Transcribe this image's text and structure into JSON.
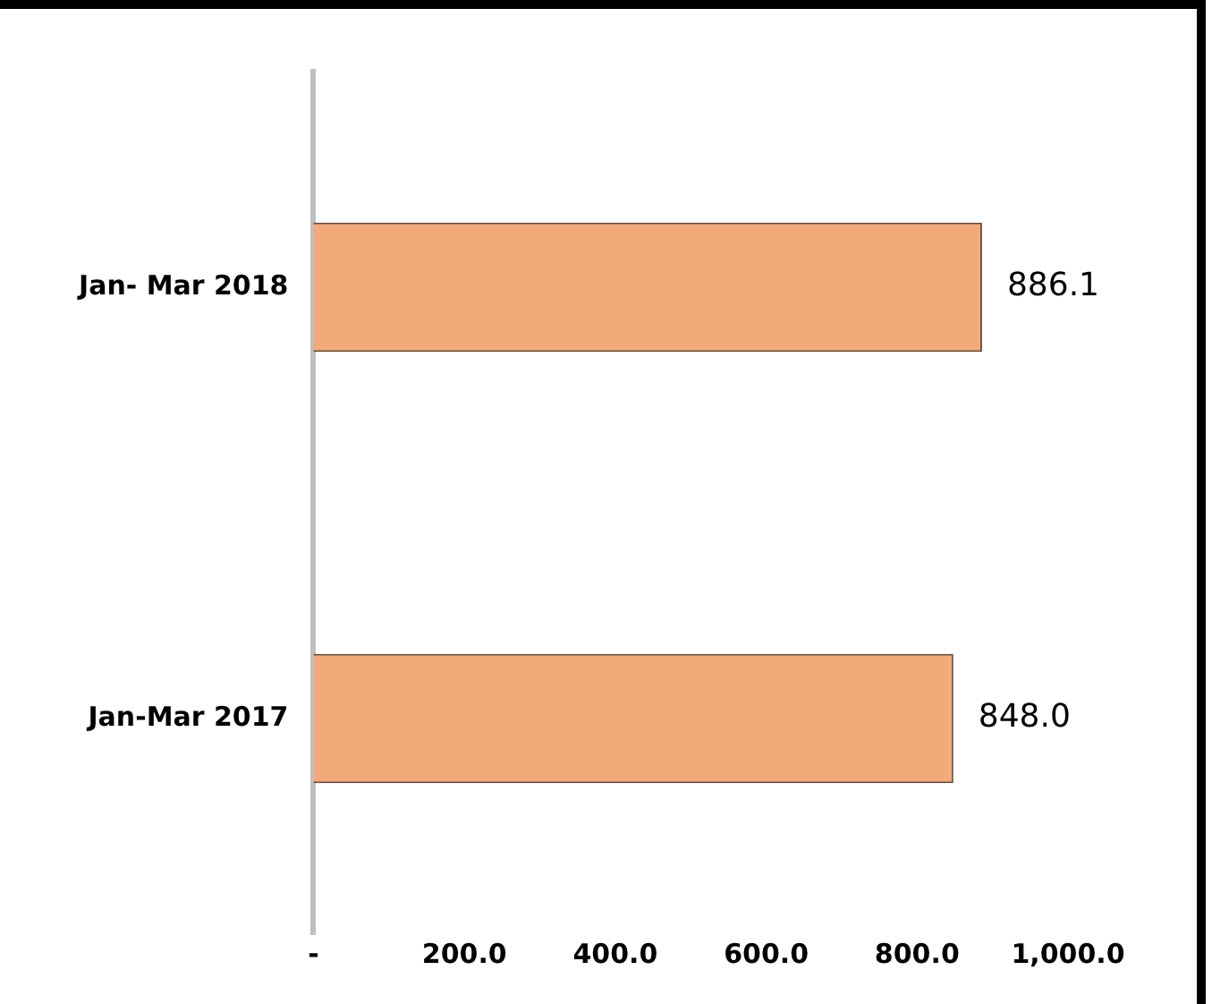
{
  "chart_data": {
    "type": "bar",
    "orientation": "horizontal",
    "categories": [
      "Jan- Mar 2018",
      "Jan-Mar 2017"
    ],
    "values": [
      886.1,
      848.0
    ],
    "color": "#f2aa7a",
    "value_labels": [
      "886.1",
      "848.0"
    ],
    "xlim": [
      0,
      1000
    ],
    "xticks": [
      {
        "value": 0,
        "label": "-"
      },
      {
        "value": 200,
        "label": "200.0"
      },
      {
        "value": 400,
        "label": "400.0"
      },
      {
        "value": 600,
        "label": "600.0"
      },
      {
        "value": 800,
        "label": "800.0"
      },
      {
        "value": 1000,
        "label": "1,000.0"
      }
    ],
    "grid": false,
    "legend": false
  }
}
